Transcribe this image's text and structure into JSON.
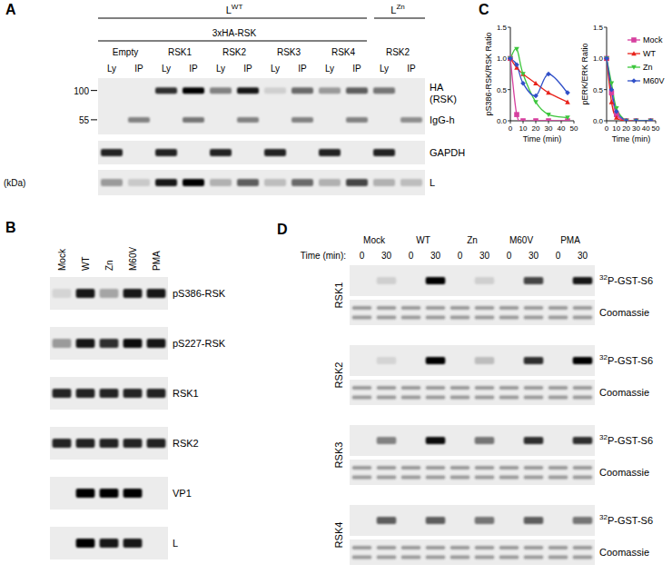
{
  "panel_a": {
    "label": "A",
    "groups": [
      {
        "base": "L",
        "sup": "WT"
      },
      {
        "base": "L",
        "sup": "Zn"
      }
    ],
    "construct": "3xHA-RSK",
    "lane_groups": [
      "Empty",
      "RSK1",
      "RSK2",
      "RSK3",
      "RSK4",
      "RSK2"
    ],
    "lanes": [
      "Ly",
      "IP"
    ],
    "markers": [
      100,
      55
    ],
    "unit": "(kDa)",
    "row_labels": [
      "HA",
      "(RSK)",
      "IgG-h",
      "GAPDH",
      "L"
    ]
  },
  "panel_b": {
    "label": "B",
    "lanes": [
      "Mock",
      "WT",
      "Zn",
      "M60V",
      "PMA"
    ],
    "row_labels": [
      "pS386-RSK",
      "pS227-RSK",
      "RSK1",
      "RSK2",
      "VP1",
      "L"
    ]
  },
  "panel_c": {
    "label": "C"
  },
  "panel_d": {
    "label": "D",
    "lanes": [
      "Mock",
      "WT",
      "Zn",
      "M60V",
      "PMA"
    ],
    "time_label": "Time (min):",
    "times": [
      0,
      30
    ],
    "groups": [
      "RSK1",
      "RSK2",
      "RSK3",
      "RSK4"
    ],
    "row_labels": [
      {
        "sup": "32",
        "base": "P-GST-S6"
      },
      "Coomassie"
    ]
  },
  "chart_data": [
    {
      "type": "line",
      "y_label": "pS386-RSK/RSK Ratio",
      "x_label": "Time (min)",
      "x": [
        0,
        5,
        10,
        20,
        30,
        45
      ],
      "xlim": [
        0,
        50
      ],
      "xticks": [
        0,
        10,
        20,
        30,
        40,
        50
      ],
      "ylim": [
        0,
        1.5
      ],
      "yticks": [
        {
          "value": 0,
          "label": "0.0"
        },
        {
          "value": 0.5,
          "label": "0.5"
        },
        {
          "value": 1,
          "label": "1.0"
        },
        {
          "value": 1.5,
          "label": "1.5"
        }
      ],
      "grid": false,
      "series": [
        {
          "color": "#d6409f",
          "marker": "square",
          "line_style": "solid",
          "values": [
            1,
            0.1,
            0,
            0,
            0,
            0
          ]
        },
        {
          "color": "#e8231b",
          "marker": "triangle",
          "line_style": "solid",
          "values": [
            1,
            0.85,
            0.75,
            0.6,
            0.45,
            0.3
          ]
        },
        {
          "color": "#3cc63c",
          "marker": "triangle-down",
          "line_style": "solid",
          "values": [
            1,
            1.15,
            0.75,
            0.3,
            0.1,
            0.05
          ]
        },
        {
          "color": "#3050c8",
          "marker": "diamond",
          "line_style": "solid",
          "values": [
            1,
            0.9,
            0.6,
            0.4,
            0.75,
            0.45
          ]
        }
      ]
    },
    {
      "type": "line",
      "y_label": "pERK/ERK Ratio",
      "x_label": "Time (min)",
      "x": [
        0,
        5,
        10,
        20,
        30,
        45
      ],
      "xlim": [
        0,
        50
      ],
      "xticks": [
        0,
        10,
        20,
        30,
        40,
        50
      ],
      "ylim": [
        0,
        1.5
      ],
      "yticks": [
        {
          "value": 0,
          "label": "0.0"
        },
        {
          "value": 0.5,
          "label": "0.5"
        },
        {
          "value": 1,
          "label": "1.0"
        },
        {
          "value": 1.5,
          "label": "1.5"
        }
      ],
      "grid": false,
      "legend": "upper right",
      "series": [
        {
          "name": "Mock",
          "color": "#d6409f",
          "marker": "square",
          "line_style": "solid",
          "values": [
            1,
            0.45,
            0.1,
            0,
            0,
            0
          ]
        },
        {
          "name": "WT",
          "color": "#e8231b",
          "marker": "triangle",
          "line_style": "solid",
          "values": [
            1,
            0.3,
            0.05,
            0,
            0,
            0
          ]
        },
        {
          "name": "Zn",
          "color": "#3cc63c",
          "marker": "triangle-down",
          "line_style": "solid",
          "values": [
            1,
            0.6,
            0.2,
            0,
            0,
            0
          ]
        },
        {
          "name": "M60V",
          "color": "#3050c8",
          "marker": "diamond",
          "line_style": "solid",
          "values": [
            1,
            0.5,
            0.15,
            0,
            0,
            0
          ]
        }
      ]
    }
  ]
}
